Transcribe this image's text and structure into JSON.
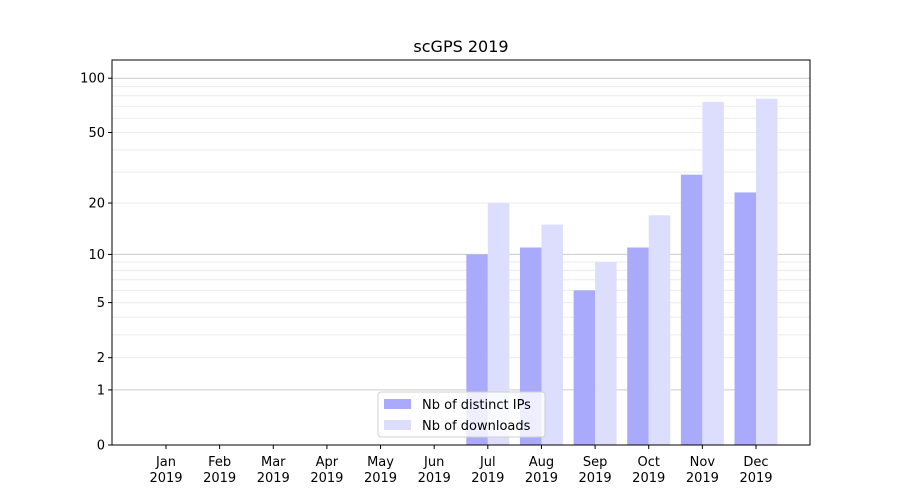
{
  "chart_data": {
    "type": "bar",
    "title": "scGPS 2019",
    "xlabel": "",
    "ylabel": "",
    "yscale": "log(1+y)",
    "ylim": [
      0,
      126
    ],
    "yticks": [
      0,
      1,
      2,
      5,
      10,
      20,
      50,
      100
    ],
    "grid": true,
    "legend_position": "bottom-center",
    "categories": [
      "Jan\n2019",
      "Feb\n2019",
      "Mar\n2019",
      "Apr\n2019",
      "May\n2019",
      "Jun\n2019",
      "Jul\n2019",
      "Aug\n2019",
      "Sep\n2019",
      "Oct\n2019",
      "Nov\n2019",
      "Dec\n2019"
    ],
    "series": [
      {
        "name": "Nb of distinct IPs",
        "color": "#aaaafd",
        "values": [
          0,
          0,
          0,
          0,
          0,
          0,
          10,
          11,
          6,
          11,
          29,
          23
        ]
      },
      {
        "name": "Nb of downloads",
        "color": "#ddddfd",
        "values": [
          0,
          0,
          0,
          0,
          0,
          0,
          20,
          15,
          9,
          17,
          74,
          77
        ]
      }
    ]
  }
}
